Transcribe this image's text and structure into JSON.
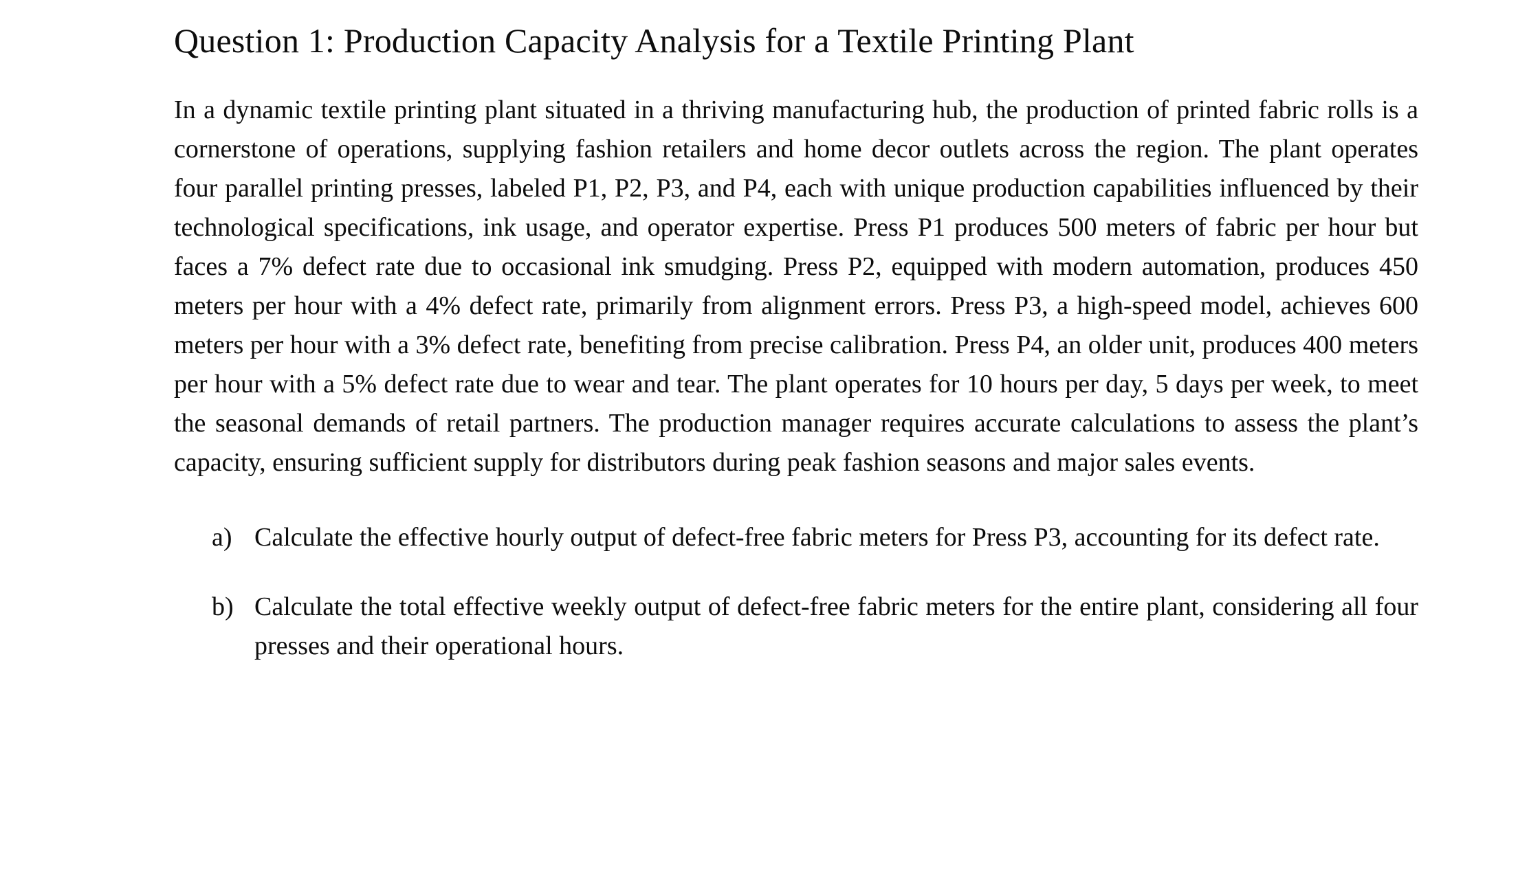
{
  "document": {
    "title": "Question 1: Production Capacity Analysis for a Textile Printing Plant",
    "paragraph": "In a dynamic textile printing plant situated in a thriving manufacturing hub, the production of printed fabric rolls is a cornerstone of operations, supplying fashion retailers and home decor outlets across the region. The plant operates four parallel printing presses, labeled P1, P2, P3, and P4, each with unique production capabilities influenced by their technological specifications, ink usage, and operator expertise. Press P1 produces 500 meters of fabric per hour but faces a 7% defect rate due to occasional ink smudging. Press P2, equipped with modern automation, produces 450 meters per hour with a 4% defect rate, primarily from alignment errors. Press P3, a high-speed model, achieves 600 meters per hour with a 3% defect rate, benefiting from precise calibration. Press P4, an older unit, produces 400 meters per hour with a 5% defect rate due to wear and tear. The plant operates for 10 hours per day, 5 days per week, to meet the seasonal demands of retail partners. The production manager requires accurate calculations to assess the plant’s capacity, ensuring sufficient supply for distributors during peak fashion seasons and major sales events.",
    "items": [
      {
        "label": "a)",
        "text": "Calculate the effective hourly output of defect-free fabric meters for Press P3, accounting for its defect rate."
      },
      {
        "label": "b)",
        "text": "Calculate the total effective weekly output of defect-free fabric meters for the entire plant, considering all four presses and their operational hours."
      }
    ]
  }
}
